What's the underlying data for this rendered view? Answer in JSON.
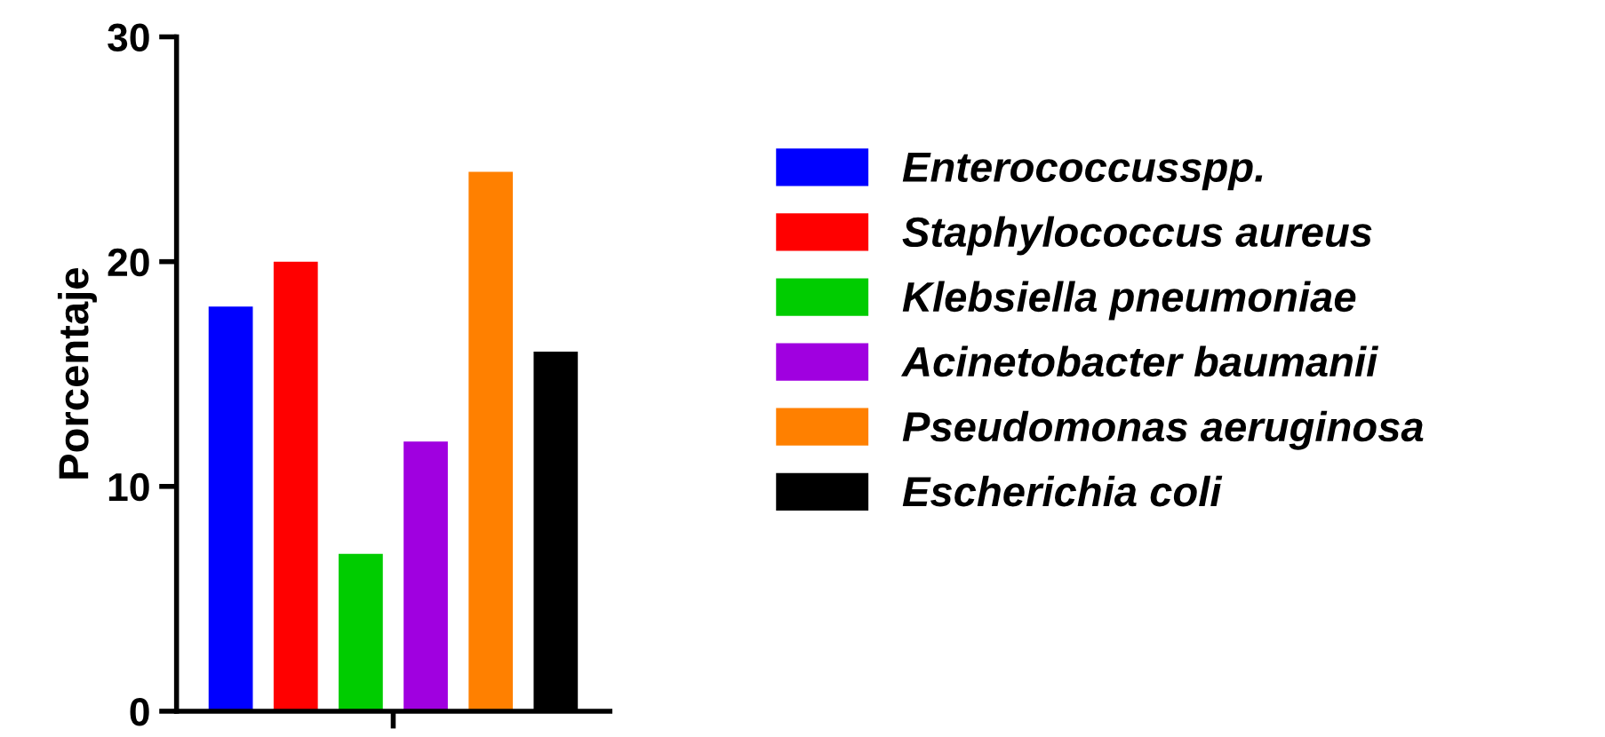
{
  "chart_data": {
    "type": "bar",
    "ylabel": "Porcentaje",
    "categories": [
      null
    ],
    "series": [
      {
        "name": "Enterococcusspp.",
        "color": "#0000ff",
        "values": [
          18
        ]
      },
      {
        "name": "Staphylococcus aureus",
        "color": "#ff0000",
        "values": [
          20
        ]
      },
      {
        "name": "Klebsiella pneumoniae",
        "color": "#00cc00",
        "values": [
          7
        ]
      },
      {
        "name": "Acinetobacter baumanii",
        "color": "#a000e0",
        "values": [
          12
        ]
      },
      {
        "name": "Pseudomonas aeruginosa",
        "color": "#ff8000",
        "values": [
          24
        ]
      },
      {
        "name": "Escherichia coli",
        "color": "#000000",
        "values": [
          16
        ]
      }
    ],
    "ylim": [
      0,
      30
    ],
    "yticks": [
      0,
      10,
      20,
      30
    ],
    "grid": false,
    "legend": "right"
  }
}
